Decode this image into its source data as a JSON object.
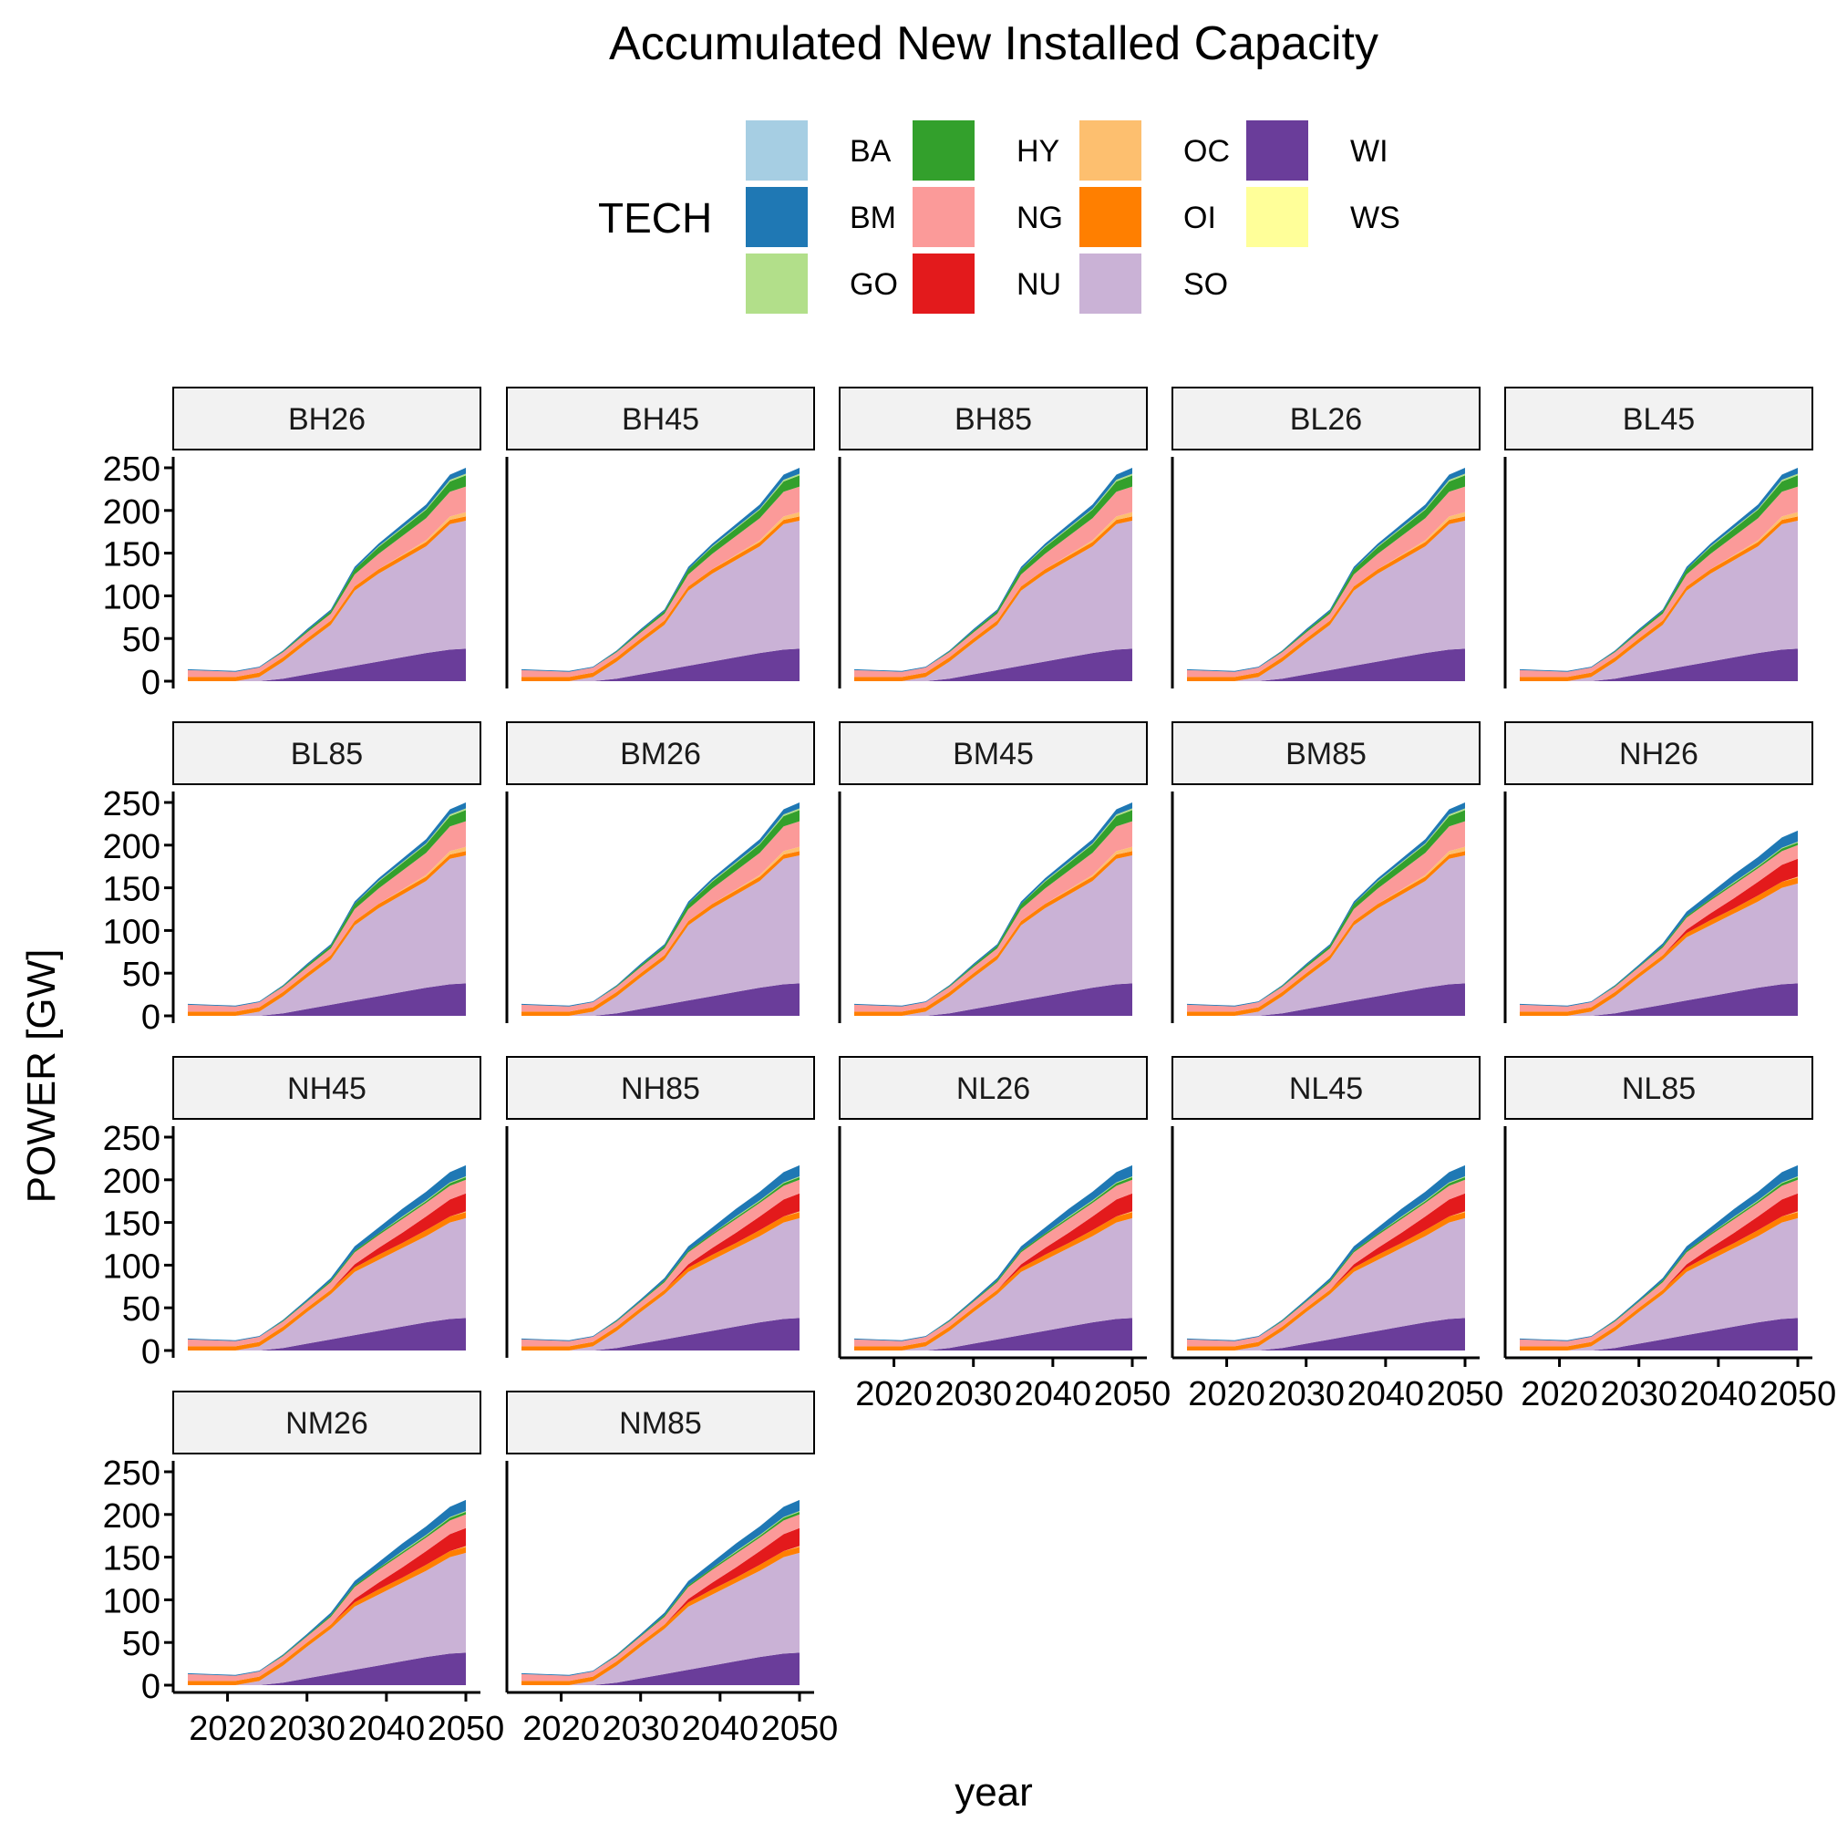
{
  "chart_data": {
    "type": "area",
    "title": "Accumulated New Installed Capacity",
    "xlabel": "year",
    "ylabel": "POWER [GW]",
    "xlim": [
      2015,
      2050
    ],
    "ylim": [
      0,
      250
    ],
    "x_ticks": [
      2020,
      2030,
      2040,
      2050
    ],
    "y_ticks": [
      0,
      50,
      100,
      150,
      200,
      250
    ],
    "grid": false,
    "legend_position": "top",
    "legend_title": "TECH",
    "x": [
      2015,
      2018,
      2021,
      2024,
      2027,
      2030,
      2033,
      2036,
      2039,
      2042,
      2045,
      2048,
      2050
    ],
    "stack_order": [
      "WI",
      "SO",
      "OI",
      "OC",
      "NU",
      "NG",
      "HY",
      "GO",
      "BM",
      "BA",
      "WS"
    ],
    "legend_entries": [
      {
        "name": "BA",
        "color": "#a6cee3"
      },
      {
        "name": "BM",
        "color": "#1f78b4"
      },
      {
        "name": "GO",
        "color": "#b2df8a"
      },
      {
        "name": "HY",
        "color": "#33a02c"
      },
      {
        "name": "NG",
        "color": "#fb9a99"
      },
      {
        "name": "NU",
        "color": "#e31a1c"
      },
      {
        "name": "OC",
        "color": "#fdbf6f"
      },
      {
        "name": "OI",
        "color": "#ff7f00"
      },
      {
        "name": "SO",
        "color": "#cab2d6"
      },
      {
        "name": "WI",
        "color": "#6a3d9a"
      },
      {
        "name": "WS",
        "color": "#ffff99"
      }
    ],
    "scenario_profiles": {
      "B": {
        "WI": [
          0,
          0,
          0,
          0,
          3,
          8,
          13,
          18,
          23,
          28,
          33,
          37,
          38
        ],
        "SO": [
          0,
          0,
          0,
          5,
          20,
          37,
          53,
          88,
          103,
          114,
          125,
          147,
          150
        ],
        "OI": [
          5,
          5,
          5,
          5,
          5,
          5,
          5,
          5,
          5,
          5,
          5,
          5,
          5
        ],
        "OC": [
          0,
          0,
          0,
          0,
          0,
          0,
          0,
          0,
          0,
          1,
          2,
          4,
          5
        ],
        "NU": [
          0,
          0,
          0,
          0,
          0,
          0,
          0,
          0,
          0,
          0,
          0,
          0,
          0
        ],
        "NG": [
          8,
          7,
          6,
          6,
          6,
          7,
          8,
          14,
          18,
          22,
          26,
          29,
          30
        ],
        "HY": [
          0,
          0,
          0,
          0,
          1,
          2,
          3,
          6,
          8,
          9,
          10,
          12,
          13
        ],
        "GO": [
          0,
          0,
          0,
          0,
          0,
          0,
          0,
          0,
          1,
          1,
          1,
          2,
          2
        ],
        "BM": [
          1,
          1,
          1,
          1,
          1,
          2,
          2,
          3,
          3,
          4,
          5,
          6,
          7
        ],
        "BA": [
          0,
          0,
          0,
          0,
          0,
          0,
          0,
          0,
          0,
          0,
          0,
          0,
          0
        ],
        "WS": [
          0,
          0,
          0,
          0,
          0,
          0,
          0,
          0,
          0,
          0,
          0,
          0,
          0
        ]
      },
      "N": {
        "WI": [
          0,
          0,
          0,
          0,
          3,
          8,
          13,
          18,
          23,
          28,
          33,
          37,
          38
        ],
        "SO": [
          0,
          0,
          0,
          5,
          20,
          37,
          53,
          74,
          83,
          92,
          101,
          113,
          117
        ],
        "OI": [
          5,
          5,
          5,
          5,
          5,
          5,
          5,
          5,
          6,
          6,
          7,
          7,
          7
        ],
        "OC": [
          0,
          0,
          0,
          0,
          0,
          0,
          0,
          0,
          0,
          0,
          0,
          0,
          1
        ],
        "NU": [
          0,
          0,
          0,
          0,
          0,
          0,
          0,
          4,
          8,
          12,
          16,
          20,
          21
        ],
        "NG": [
          8,
          7,
          6,
          6,
          6,
          7,
          9,
          14,
          15,
          16,
          16,
          16,
          16
        ],
        "HY": [
          0,
          0,
          0,
          0,
          1,
          1,
          2,
          2,
          2,
          2,
          2,
          3,
          3
        ],
        "GO": [
          0,
          0,
          0,
          0,
          0,
          0,
          0,
          0,
          0,
          1,
          1,
          1,
          1
        ],
        "BM": [
          1,
          1,
          1,
          1,
          1,
          2,
          3,
          5,
          7,
          9,
          10,
          12,
          13
        ],
        "BA": [
          0,
          0,
          0,
          0,
          0,
          0,
          0,
          0,
          0,
          0,
          0,
          0,
          0
        ],
        "WS": [
          0,
          0,
          0,
          0,
          0,
          0,
          0,
          0,
          0,
          0,
          0,
          0,
          0
        ]
      }
    },
    "panels": [
      {
        "label": "BH26",
        "profile": "B"
      },
      {
        "label": "BH45",
        "profile": "B"
      },
      {
        "label": "BH85",
        "profile": "B"
      },
      {
        "label": "BL26",
        "profile": "B"
      },
      {
        "label": "BL45",
        "profile": "B"
      },
      {
        "label": "BL85",
        "profile": "B"
      },
      {
        "label": "BM26",
        "profile": "B"
      },
      {
        "label": "BM45",
        "profile": "B"
      },
      {
        "label": "BM85",
        "profile": "B"
      },
      {
        "label": "NH26",
        "profile": "N"
      },
      {
        "label": "NH45",
        "profile": "N"
      },
      {
        "label": "NH85",
        "profile": "N"
      },
      {
        "label": "NL26",
        "profile": "N"
      },
      {
        "label": "NL45",
        "profile": "N"
      },
      {
        "label": "NL85",
        "profile": "N"
      },
      {
        "label": "NM26",
        "profile": "N"
      },
      {
        "label": "NM85",
        "profile": "N"
      }
    ]
  }
}
